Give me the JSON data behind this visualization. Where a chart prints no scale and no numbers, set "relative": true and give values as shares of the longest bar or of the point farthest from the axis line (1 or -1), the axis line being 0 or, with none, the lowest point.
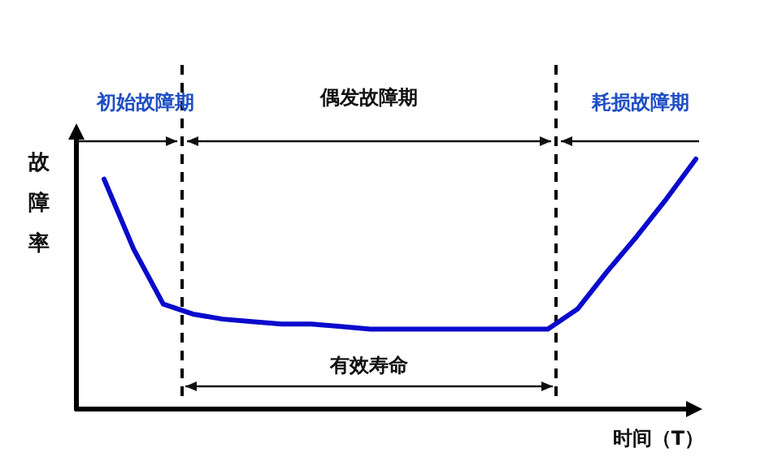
{
  "chart_data": {
    "type": "line",
    "relative": true,
    "xlabel": "时间（T）",
    "ylabel": "故障率",
    "categories": [
      null,
      null,
      null,
      null,
      null,
      null,
      null,
      null,
      null,
      null,
      null,
      null,
      null,
      null,
      null,
      null,
      null,
      null,
      null,
      null,
      null
    ],
    "series": [
      {
        "color": "#0a0acc",
        "values": [
          0.92,
          0.64,
          0.42,
          0.38,
          0.36,
          0.35,
          0.34,
          0.34,
          0.33,
          0.32,
          0.32,
          0.32,
          0.32,
          0.32,
          0.32,
          0.32,
          0.4,
          0.55,
          0.69,
          0.84,
          1
        ]
      }
    ],
    "annotations": [
      "初始故障期",
      "偶发故障期",
      "耗损故障期",
      "有效寿命"
    ],
    "line_style": "solid"
  }
}
